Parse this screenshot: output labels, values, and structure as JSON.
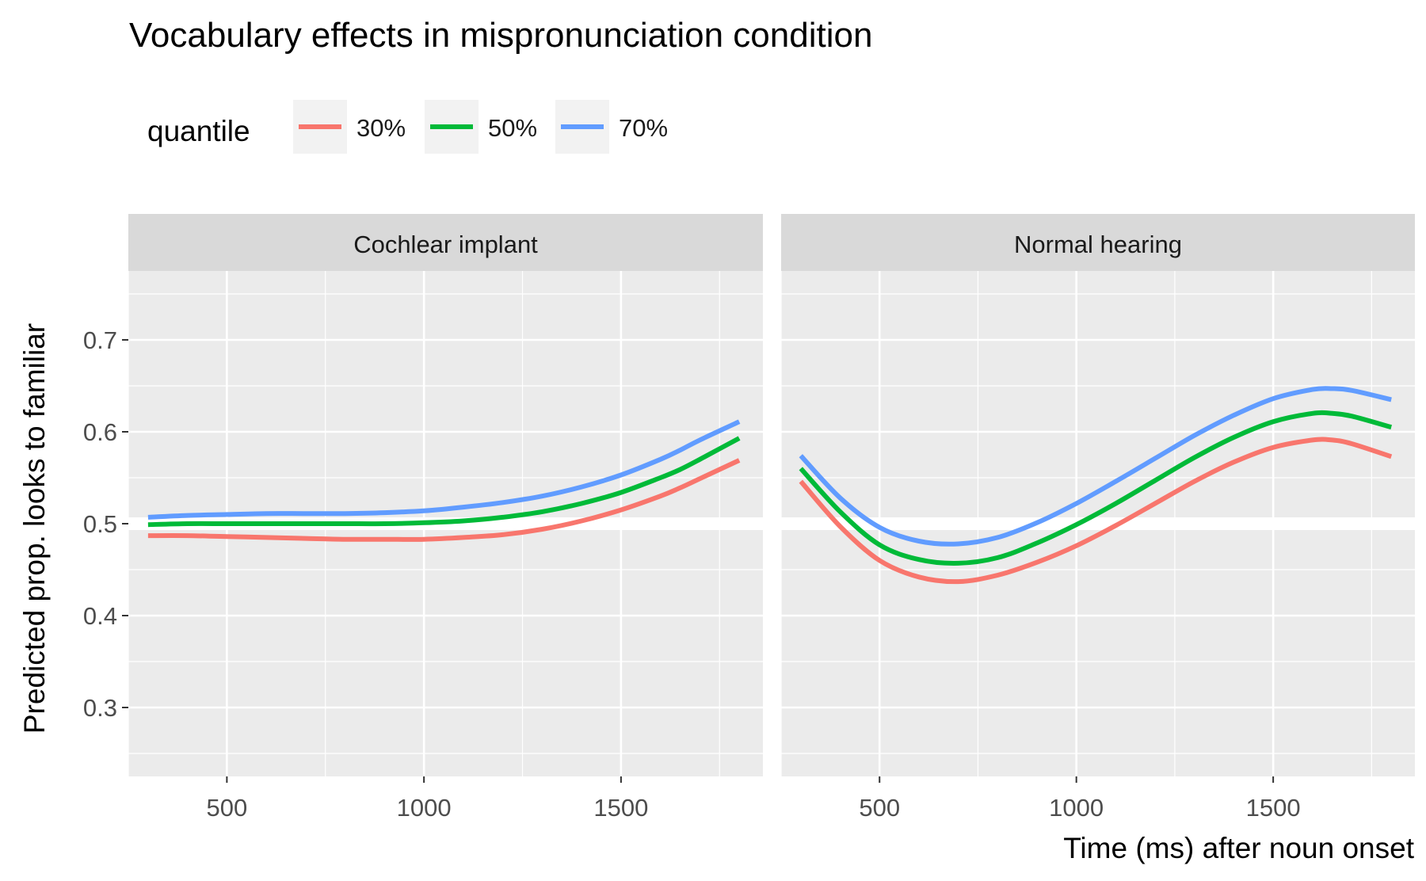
{
  "chart_data": {
    "type": "line",
    "title": "Vocabulary effects in mispronunciation condition",
    "xlabel": "Time (ms) after noun onset",
    "ylabel": "Predicted prop. looks to familiar",
    "xlim": [
      250,
      1860
    ],
    "ylim": [
      0.225,
      0.775
    ],
    "x_ticks": [
      500,
      1000,
      1500
    ],
    "y_ticks": [
      0.3,
      0.4,
      0.5,
      0.6,
      0.7
    ],
    "grid": true,
    "legend": {
      "title": "quantile",
      "position": "top-left",
      "entries": [
        "30%",
        "50%",
        "70%"
      ]
    },
    "colors": {
      "30%": "#F8766D",
      "50%": "#00BA38",
      "70%": "#619CFF",
      "panel_bg": "#EBEBEB",
      "strip_bg": "#D9D9D9",
      "reference_line": "#FFFFFF"
    },
    "reference_line_y": 0.5,
    "x": [
      300,
      400,
      500,
      600,
      700,
      800,
      900,
      1000,
      1100,
      1200,
      1300,
      1400,
      1500,
      1600,
      1650,
      1700,
      1800
    ],
    "panels": [
      {
        "label": "Cochlear implant",
        "series": [
          {
            "name": "30%",
            "values": [
              0.487,
              0.487,
              0.486,
              0.485,
              0.484,
              0.483,
              0.483,
              0.483,
              0.485,
              0.488,
              0.494,
              0.503,
              0.515,
              0.53,
              0.539,
              0.549,
              0.569
            ]
          },
          {
            "name": "50%",
            "values": [
              0.499,
              0.5,
              0.5,
              0.5,
              0.5,
              0.5,
              0.5,
              0.501,
              0.503,
              0.507,
              0.513,
              0.522,
              0.534,
              0.55,
              0.559,
              0.57,
              0.593
            ]
          },
          {
            "name": "70%",
            "values": [
              0.507,
              0.509,
              0.51,
              0.511,
              0.511,
              0.511,
              0.512,
              0.514,
              0.518,
              0.523,
              0.53,
              0.54,
              0.553,
              0.57,
              0.58,
              0.591,
              0.611
            ]
          }
        ]
      },
      {
        "label": "Normal hearing",
        "series": [
          {
            "name": "30%",
            "values": [
              0.546,
              0.497,
              0.46,
              0.442,
              0.437,
              0.444,
              0.458,
              0.476,
              0.498,
              0.522,
              0.546,
              0.567,
              0.583,
              0.591,
              0.591,
              0.587,
              0.573
            ]
          },
          {
            "name": "50%",
            "values": [
              0.56,
              0.513,
              0.477,
              0.461,
              0.457,
              0.463,
              0.479,
              0.499,
              0.522,
              0.547,
              0.572,
              0.594,
              0.611,
              0.62,
              0.62,
              0.617,
              0.605
            ]
          },
          {
            "name": "70%",
            "values": [
              0.574,
              0.528,
              0.496,
              0.481,
              0.478,
              0.485,
              0.501,
              0.522,
              0.546,
              0.571,
              0.596,
              0.618,
              0.636,
              0.646,
              0.647,
              0.645,
              0.635
            ]
          }
        ]
      }
    ]
  }
}
